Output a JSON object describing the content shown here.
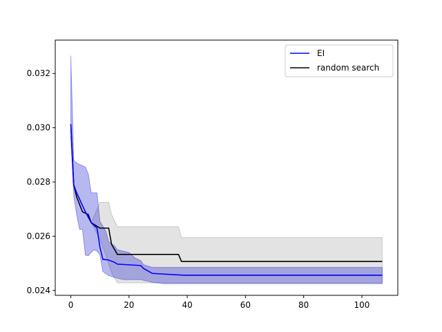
{
  "chart_data": {
    "type": "line",
    "title": "",
    "xlabel": "",
    "ylabel": "",
    "xlim": [
      -5.35,
      112.35
    ],
    "ylim": [
      0.02382,
      0.03323
    ],
    "xticks": [
      0,
      20,
      40,
      60,
      80,
      100
    ],
    "yticks": [
      0.024,
      0.026,
      0.028,
      0.03,
      0.032
    ],
    "ytick_labels": [
      "0.024",
      "0.026",
      "0.028",
      "0.030",
      "0.032"
    ],
    "xtick_labels": [
      "0",
      "20",
      "40",
      "60",
      "80",
      "100"
    ],
    "legend_placement": "top-right",
    "grid": false,
    "series": [
      {
        "name": "EI",
        "color": "#0000ff",
        "band_color": "#0000cc",
        "band_opacity": 0.28,
        "mean": [
          [
            0,
            0.03013
          ],
          [
            1,
            0.0279
          ],
          [
            2,
            0.0276
          ],
          [
            5,
            0.0269
          ],
          [
            7,
            0.0265
          ],
          [
            9,
            0.0263
          ],
          [
            10,
            0.0256
          ],
          [
            11,
            0.02515
          ],
          [
            13,
            0.02512
          ],
          [
            15,
            0.02504
          ],
          [
            16,
            0.02497
          ],
          [
            24,
            0.02492
          ],
          [
            25,
            0.02481
          ],
          [
            28,
            0.02463
          ],
          [
            39,
            0.02456
          ],
          [
            107,
            0.02456
          ]
        ],
        "upper": [
          [
            0,
            0.03266
          ],
          [
            1,
            0.0288
          ],
          [
            2,
            0.0287
          ],
          [
            4,
            0.0286
          ],
          [
            5,
            0.02855
          ],
          [
            6,
            0.0283
          ],
          [
            7,
            0.0276
          ],
          [
            9,
            0.0276
          ],
          [
            10,
            0.02655
          ],
          [
            12,
            0.0262
          ],
          [
            13,
            0.0258
          ],
          [
            15,
            0.02565
          ],
          [
            16,
            0.0255
          ],
          [
            20,
            0.0254
          ],
          [
            22,
            0.0252
          ],
          [
            24,
            0.0251
          ],
          [
            25,
            0.02495
          ],
          [
            28,
            0.02485
          ],
          [
            107,
            0.02485
          ]
        ],
        "lower": [
          [
            0,
            0.02963
          ],
          [
            1,
            0.0275
          ],
          [
            2,
            0.0268
          ],
          [
            3,
            0.02625
          ],
          [
            4,
            0.02625
          ],
          [
            5,
            0.0253
          ],
          [
            6,
            0.02528
          ],
          [
            7,
            0.0254
          ],
          [
            8,
            0.0255
          ],
          [
            9,
            0.02545
          ],
          [
            10,
            0.02532
          ],
          [
            11,
            0.0247
          ],
          [
            13,
            0.02455
          ],
          [
            16,
            0.02445
          ],
          [
            18,
            0.0244
          ],
          [
            24,
            0.0244
          ],
          [
            28,
            0.0243
          ],
          [
            32,
            0.02425
          ],
          [
            107,
            0.02425
          ]
        ]
      },
      {
        "name": "random search",
        "color": "#000000",
        "band_color": "#808080",
        "band_opacity": 0.22,
        "mean": [
          [
            0,
            0.03013
          ],
          [
            1,
            0.0279
          ],
          [
            2,
            0.02745
          ],
          [
            4,
            0.0269
          ],
          [
            6,
            0.0268
          ],
          [
            7,
            0.0265
          ],
          [
            10,
            0.0263
          ],
          [
            13,
            0.0263
          ],
          [
            14,
            0.0257
          ],
          [
            16,
            0.02533
          ],
          [
            37,
            0.02533
          ],
          [
            38,
            0.02507
          ],
          [
            107,
            0.02507
          ]
        ],
        "upper": [
          [
            0,
            0.03013
          ],
          [
            1,
            0.0279
          ],
          [
            2,
            0.02745
          ],
          [
            4,
            0.0269
          ],
          [
            6,
            0.0268
          ],
          [
            7,
            0.0265
          ],
          [
            10,
            0.02725
          ],
          [
            13,
            0.02725
          ],
          [
            14,
            0.0268
          ],
          [
            16,
            0.02635
          ],
          [
            37,
            0.02635
          ],
          [
            38,
            0.02595
          ],
          [
            107,
            0.02595
          ]
        ],
        "lower": [
          [
            0,
            0.03013
          ],
          [
            1,
            0.0279
          ],
          [
            2,
            0.02745
          ],
          [
            4,
            0.0269
          ],
          [
            6,
            0.0268
          ],
          [
            7,
            0.0265
          ],
          [
            10,
            0.0259
          ],
          [
            12,
            0.0253
          ],
          [
            14,
            0.02465
          ],
          [
            16,
            0.02428
          ],
          [
            37,
            0.02428
          ],
          [
            38,
            0.02428
          ],
          [
            107,
            0.02428
          ]
        ]
      }
    ]
  }
}
